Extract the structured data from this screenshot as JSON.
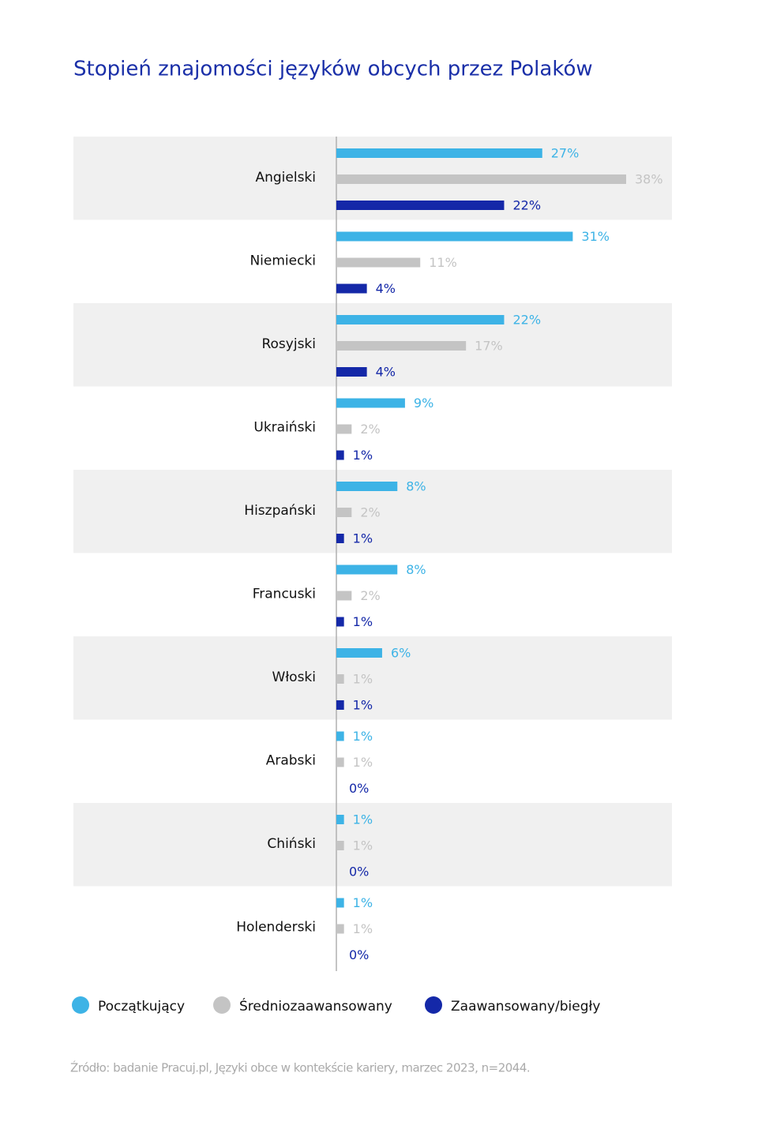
{
  "chart_data": {
    "type": "bar",
    "orientation": "horizontal",
    "title": "Stopień znajomości języków obcych przez Polaków",
    "categories": [
      "Angielski",
      "Niemiecki",
      "Rosyjski",
      "Ukraiński",
      "Hiszpański",
      "Francuski",
      "Włoski",
      "Arabski",
      "Chiński",
      "Holenderski"
    ],
    "series": [
      {
        "name": "Początkujący",
        "color": "#3db3e6",
        "label_color": "#3db3e6",
        "values": [
          27,
          31,
          22,
          9,
          8,
          8,
          6,
          1,
          1,
          1
        ],
        "value_labels": [
          "27%",
          "31%",
          "22%",
          "9%",
          "8%",
          "8%",
          "6%",
          "1%",
          "1%",
          "1%"
        ]
      },
      {
        "name": "Średniozaawansowany",
        "color": "#c4c4c4",
        "label_color": "#c4c4c4",
        "values": [
          38,
          11,
          17,
          2,
          2,
          2,
          1,
          1,
          1,
          1
        ],
        "value_labels": [
          "38%",
          "11%",
          "17%",
          "2%",
          "2%",
          "2%",
          "1%",
          "1%",
          "1%",
          "1%"
        ]
      },
      {
        "name": "Zaawansowany/biegły",
        "color": "#1428a8",
        "label_color": "#1428a8",
        "values": [
          22,
          4,
          4,
          1,
          1,
          1,
          1,
          0,
          0,
          0
        ],
        "value_labels": [
          "22%",
          "4%",
          "4%",
          "1%",
          "1%",
          "1%",
          "1%",
          "0%",
          "0%",
          "0%"
        ]
      }
    ],
    "legend": "bottom",
    "source": "Źródło: badanie Pracuj.pl, Języki obce w kontekście kariery, marzec 2023, n=2044."
  }
}
